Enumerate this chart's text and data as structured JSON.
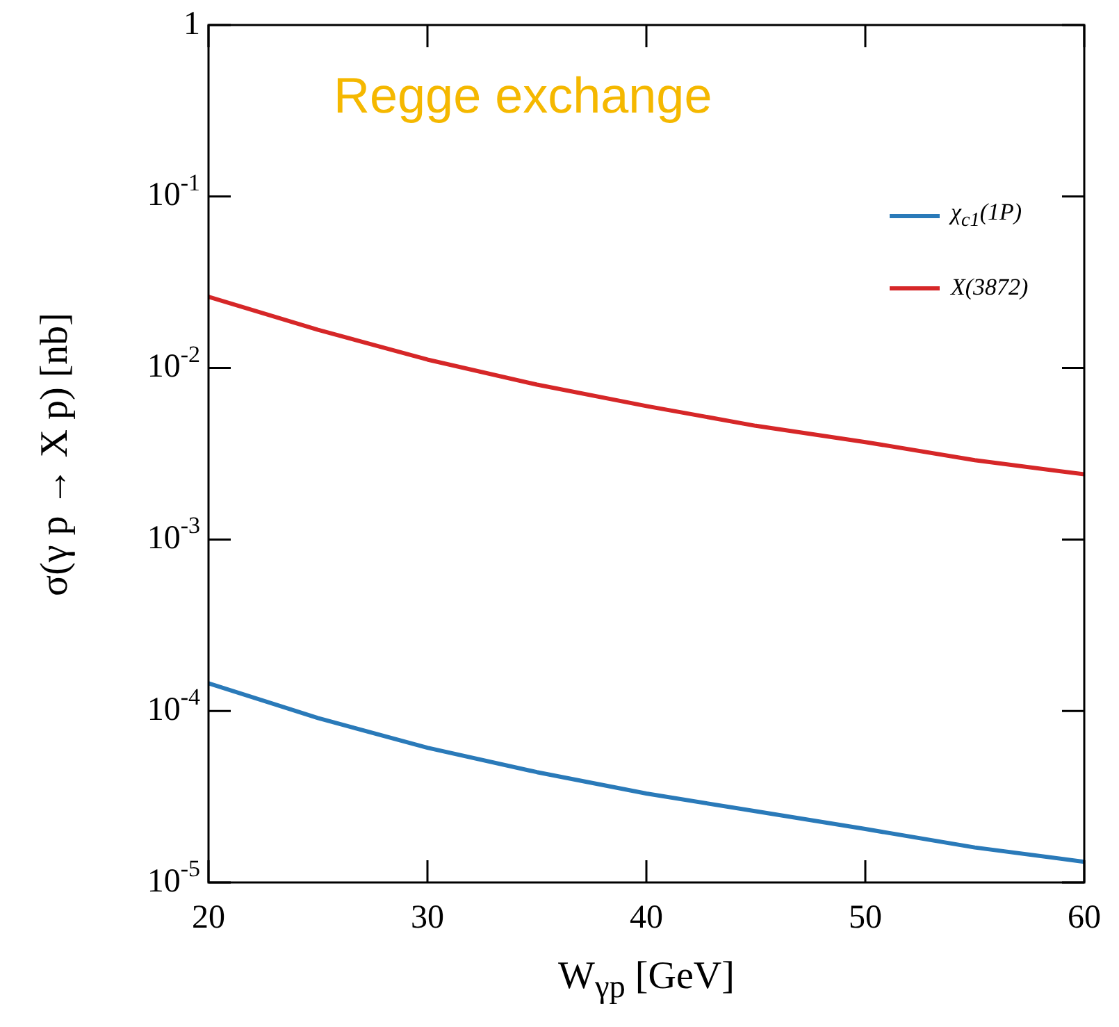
{
  "chart_data": {
    "type": "line",
    "xlabel": "W$_{γp}$  [GeV]",
    "ylabel": "σ(γ p → X p)  [nb]",
    "annotations": [
      "Regge exchange"
    ],
    "log": "y",
    "grid": false,
    "legend": "top right",
    "marker": "none",
    "line_style": "solid",
    "x": [
      20,
      25,
      30,
      35,
      40,
      45,
      50,
      55,
      60
    ],
    "xlim": [
      20,
      60
    ],
    "xticks": [
      20,
      30,
      40,
      50,
      60
    ],
    "ylim": [
      1e-05,
      1
    ],
    "yticks": [
      {
        "value": 1e-05,
        "label": "10$^{-5}$"
      },
      {
        "value": 0.0001,
        "label": "10$^{-4}$"
      },
      {
        "value": 0.001,
        "label": "10$^{-3}$"
      },
      {
        "value": 0.01,
        "label": "10$^{-2}$"
      },
      {
        "value": 0.1,
        "label": "10$^{-1}$"
      },
      1
    ],
    "series": [
      {
        "name": "χ$_{c1}$(1P)",
        "color": "#2a7ab9",
        "values": [
          0.000145,
          9.1e-05,
          6.1e-05,
          4.4e-05,
          3.3e-05,
          2.6e-05,
          2.05e-05,
          1.6e-05,
          1.32e-05
        ]
      },
      {
        "name": "X(3872)",
        "color": "#d62728",
        "values": [
          0.026,
          0.0167,
          0.0112,
          0.008,
          0.006,
          0.0046,
          0.0037,
          0.0029,
          0.0024
        ]
      }
    ]
  }
}
